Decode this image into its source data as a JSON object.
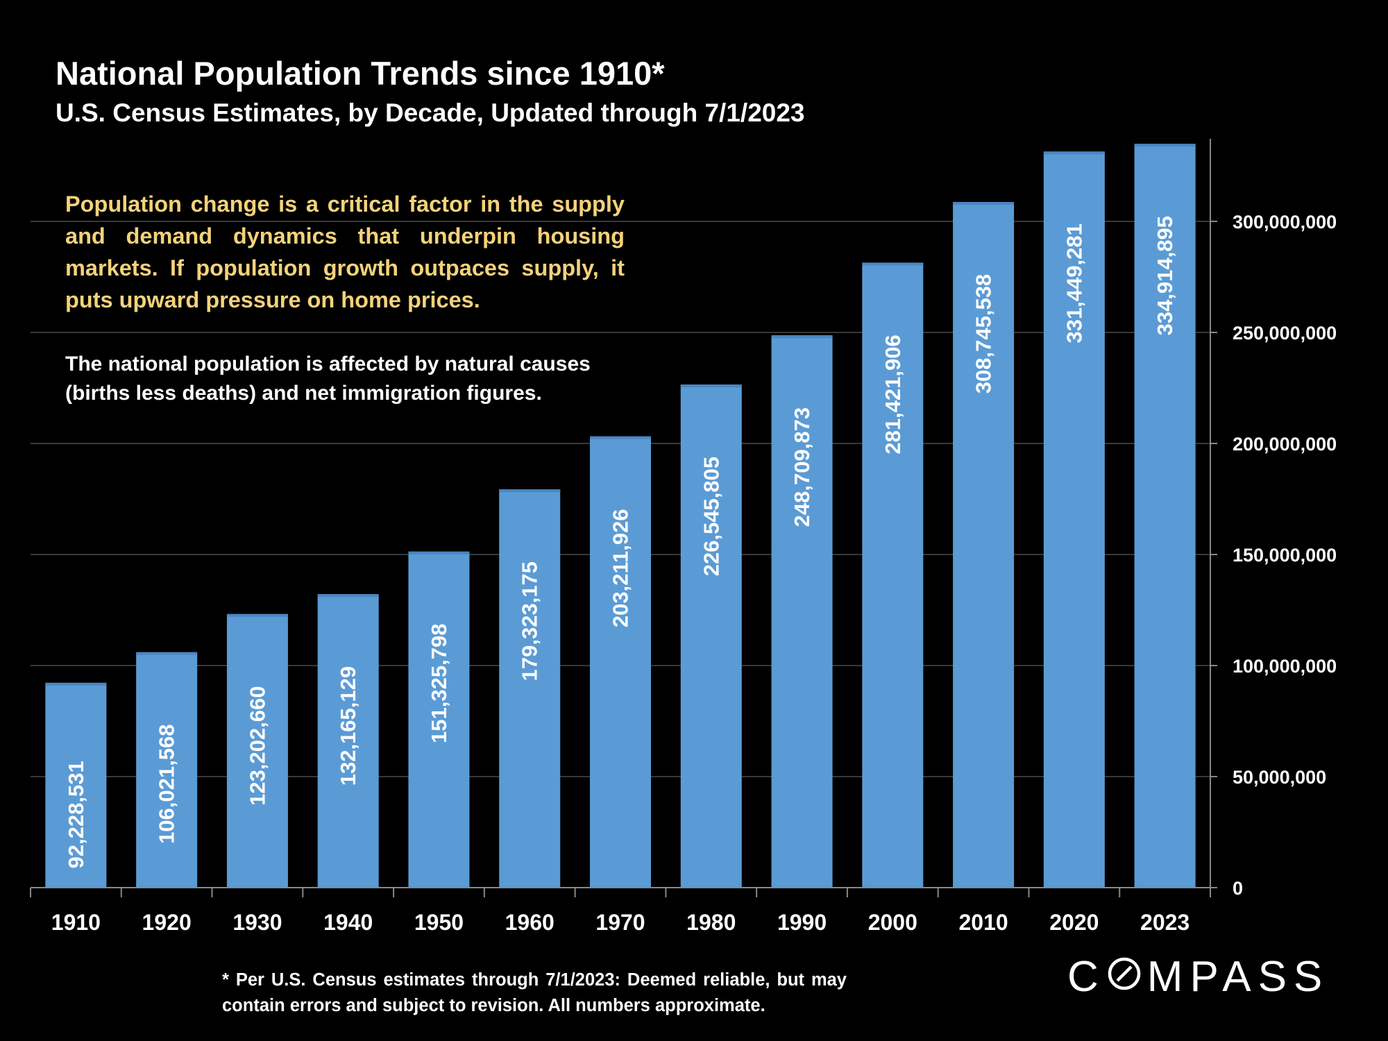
{
  "header": {
    "title": "National Population Trends since 1910*",
    "subtitle": "U.S. Census Estimates, by Decade, Updated through 7/1/2023"
  },
  "callout": {
    "highlight": "Population change is a critical factor in the supply and demand dynamics that underpin housing markets. If population growth outpaces supply, it puts upward pressure on home prices.",
    "note": "The national population is affected by natural causes (births less deaths) and net immigration figures."
  },
  "footnote": "* Per U.S. Census estimates through 7/1/2023: Deemed reliable, but may contain errors and subject to revision.  All numbers  approximate.",
  "brand": {
    "logo_text": "COMPASS"
  },
  "colors": {
    "background": "#000000",
    "bar": "#5b9bd5",
    "callout_text": "#f5d27a",
    "gridline": "#4a4a4a"
  },
  "chart_data": {
    "type": "bar",
    "categories": [
      "1910",
      "1920",
      "1930",
      "1940",
      "1950",
      "1960",
      "1970",
      "1980",
      "1990",
      "2000",
      "2010",
      "2020",
      "2023"
    ],
    "values": [
      92228531,
      106021568,
      123202660,
      132165129,
      151325798,
      179323175,
      203211926,
      226545805,
      248709873,
      281421906,
      308745538,
      331449281,
      334914895
    ],
    "data_labels": [
      "92,228,531",
      "106,021,568",
      "123,202,660",
      "132,165,129",
      "151,325,798",
      "179,323,175",
      "203,211,926",
      "226,545,805",
      "248,709,873",
      "281,421,906",
      "308,745,538",
      "331,449,281",
      "334,914,895"
    ],
    "yticks": [
      0,
      50000000,
      100000000,
      150000000,
      200000000,
      250000000,
      300000000
    ],
    "ytick_labels": [
      "0",
      "50,000,000",
      "100,000,000",
      "150,000,000",
      "200,000,000",
      "250,000,000",
      "300,000,000"
    ],
    "ylim": [
      0,
      335000000
    ],
    "y_axis_side": "right",
    "grid": true
  }
}
